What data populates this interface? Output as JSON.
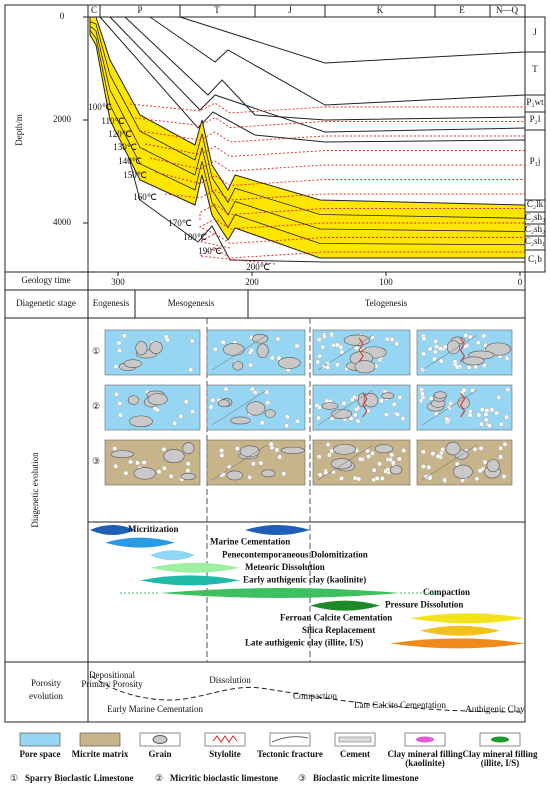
{
  "periods": [
    "C",
    "P",
    "T",
    "J",
    "K",
    "E",
    "N—Q"
  ],
  "depth_axis": {
    "label": "Depth/m",
    "ticks": [
      0,
      2000,
      4000
    ]
  },
  "formations": [
    "J",
    "T",
    "P₂wt",
    "P₂l",
    "P₁j",
    "C₂lk",
    "C₂sh₃",
    "C₂sh₂",
    "C₂sh₁",
    "C₁b"
  ],
  "temperatures": [
    "100℃",
    "110℃",
    "120℃",
    "130℃",
    "140℃",
    "150℃",
    "160℃",
    "170℃",
    "180℃",
    "190℃",
    "200℃"
  ],
  "geology_time": {
    "label": "Geology time",
    "ticks": [
      300,
      200,
      100,
      0
    ]
  },
  "diagenetic_stage": {
    "label": "Diagenetic stage",
    "stages": [
      "Eogenesis",
      "Mesogenesis",
      "Telogenesis"
    ]
  },
  "diagenetic_evolution": {
    "label": "Diagenetic evolution",
    "rows": [
      "①",
      "②",
      "③"
    ],
    "processes": [
      "Micritization",
      "Marine Cementation",
      "Penecontemporaneous Dolomitization",
      "Meteoric Dissolution",
      "Early authigenic clay (kaolinite)",
      "Compaction",
      "Pressure Dissolution",
      "Ferroan Calcite Cementation",
      "Silica Replacement",
      "Late authigenic clay (illite, I/S)"
    ]
  },
  "porosity_evolution": {
    "label_lines": [
      "Porosity",
      "evolution"
    ],
    "annotations": [
      "Depositional",
      "Primary Porosity",
      "Dissolution",
      "Early Marine Cementation",
      "Compaction",
      "Late Calcite Cementation",
      "Authigenic Clay"
    ]
  },
  "legend": {
    "items": [
      {
        "lines": [
          "Pore space"
        ]
      },
      {
        "lines": [
          "Micrite matrix"
        ]
      },
      {
        "lines": [
          "Grain"
        ]
      },
      {
        "lines": [
          "Stylolite"
        ]
      },
      {
        "lines": [
          "Tectonic fracture"
        ]
      },
      {
        "lines": [
          "Cement"
        ]
      },
      {
        "lines": [
          "Clay mineral filling",
          "(kaolinite)"
        ]
      },
      {
        "lines": [
          "Clay mineral filling",
          "(illite, I/S)"
        ]
      }
    ],
    "rock_types": [
      {
        "symbol": "①",
        "name": "Sparry Bioclastic Limestone"
      },
      {
        "symbol": "②",
        "name": "Micritic bioclastic limestone"
      },
      {
        "symbol": "③",
        "name": "Bioclastic micrite limestone"
      }
    ]
  }
}
